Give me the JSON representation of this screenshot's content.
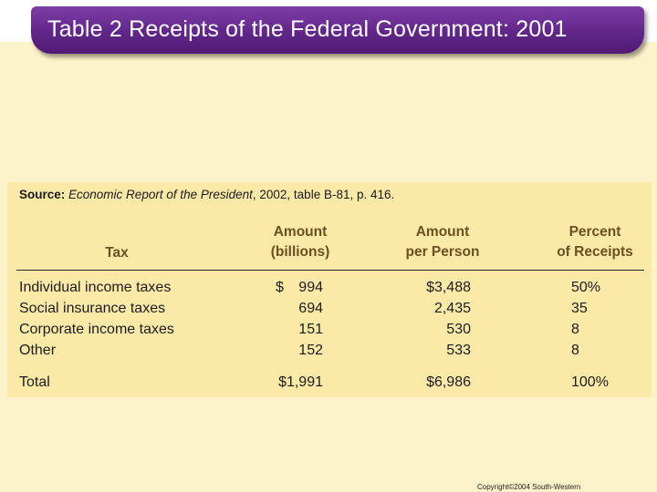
{
  "slide": {
    "title": "Table 2 Receipts of the Federal Government: 2001",
    "copyright": "Copyright©2004  South-Western"
  },
  "table": {
    "source_label": "Source:",
    "source_italic": "Economic Report of the President",
    "source_rest": ", 2002, table B-81, p. 416.",
    "headers": {
      "tax": "Tax",
      "amount_line1": "Amount",
      "amount_line2": "(billions)",
      "per_person_line1": "Amount",
      "per_person_line2": "per Person",
      "percent_line1": "Percent",
      "percent_line2": "of Receipts"
    },
    "rows": [
      {
        "tax": "Individual income taxes",
        "amount": "994",
        "amount_prefix": "$",
        "per_person": "$3,488",
        "percent": "50",
        "percent_suffix": "%"
      },
      {
        "tax": "Social insurance taxes",
        "amount": "694",
        "per_person": "2,435",
        "percent": "35"
      },
      {
        "tax": "Corporate income taxes",
        "amount": "151",
        "per_person": "530",
        "percent": "8"
      },
      {
        "tax": "Other",
        "amount": "152",
        "per_person": "533",
        "percent": "8"
      }
    ],
    "total": {
      "tax": "Total",
      "amount": "$1,991",
      "per_person": "$6,986",
      "percent": "100%"
    }
  },
  "colors": {
    "title_bar": "#61268a",
    "background": "#fdf3c8",
    "table_panel": "#fbe9a8",
    "header_text": "#6a5020"
  }
}
